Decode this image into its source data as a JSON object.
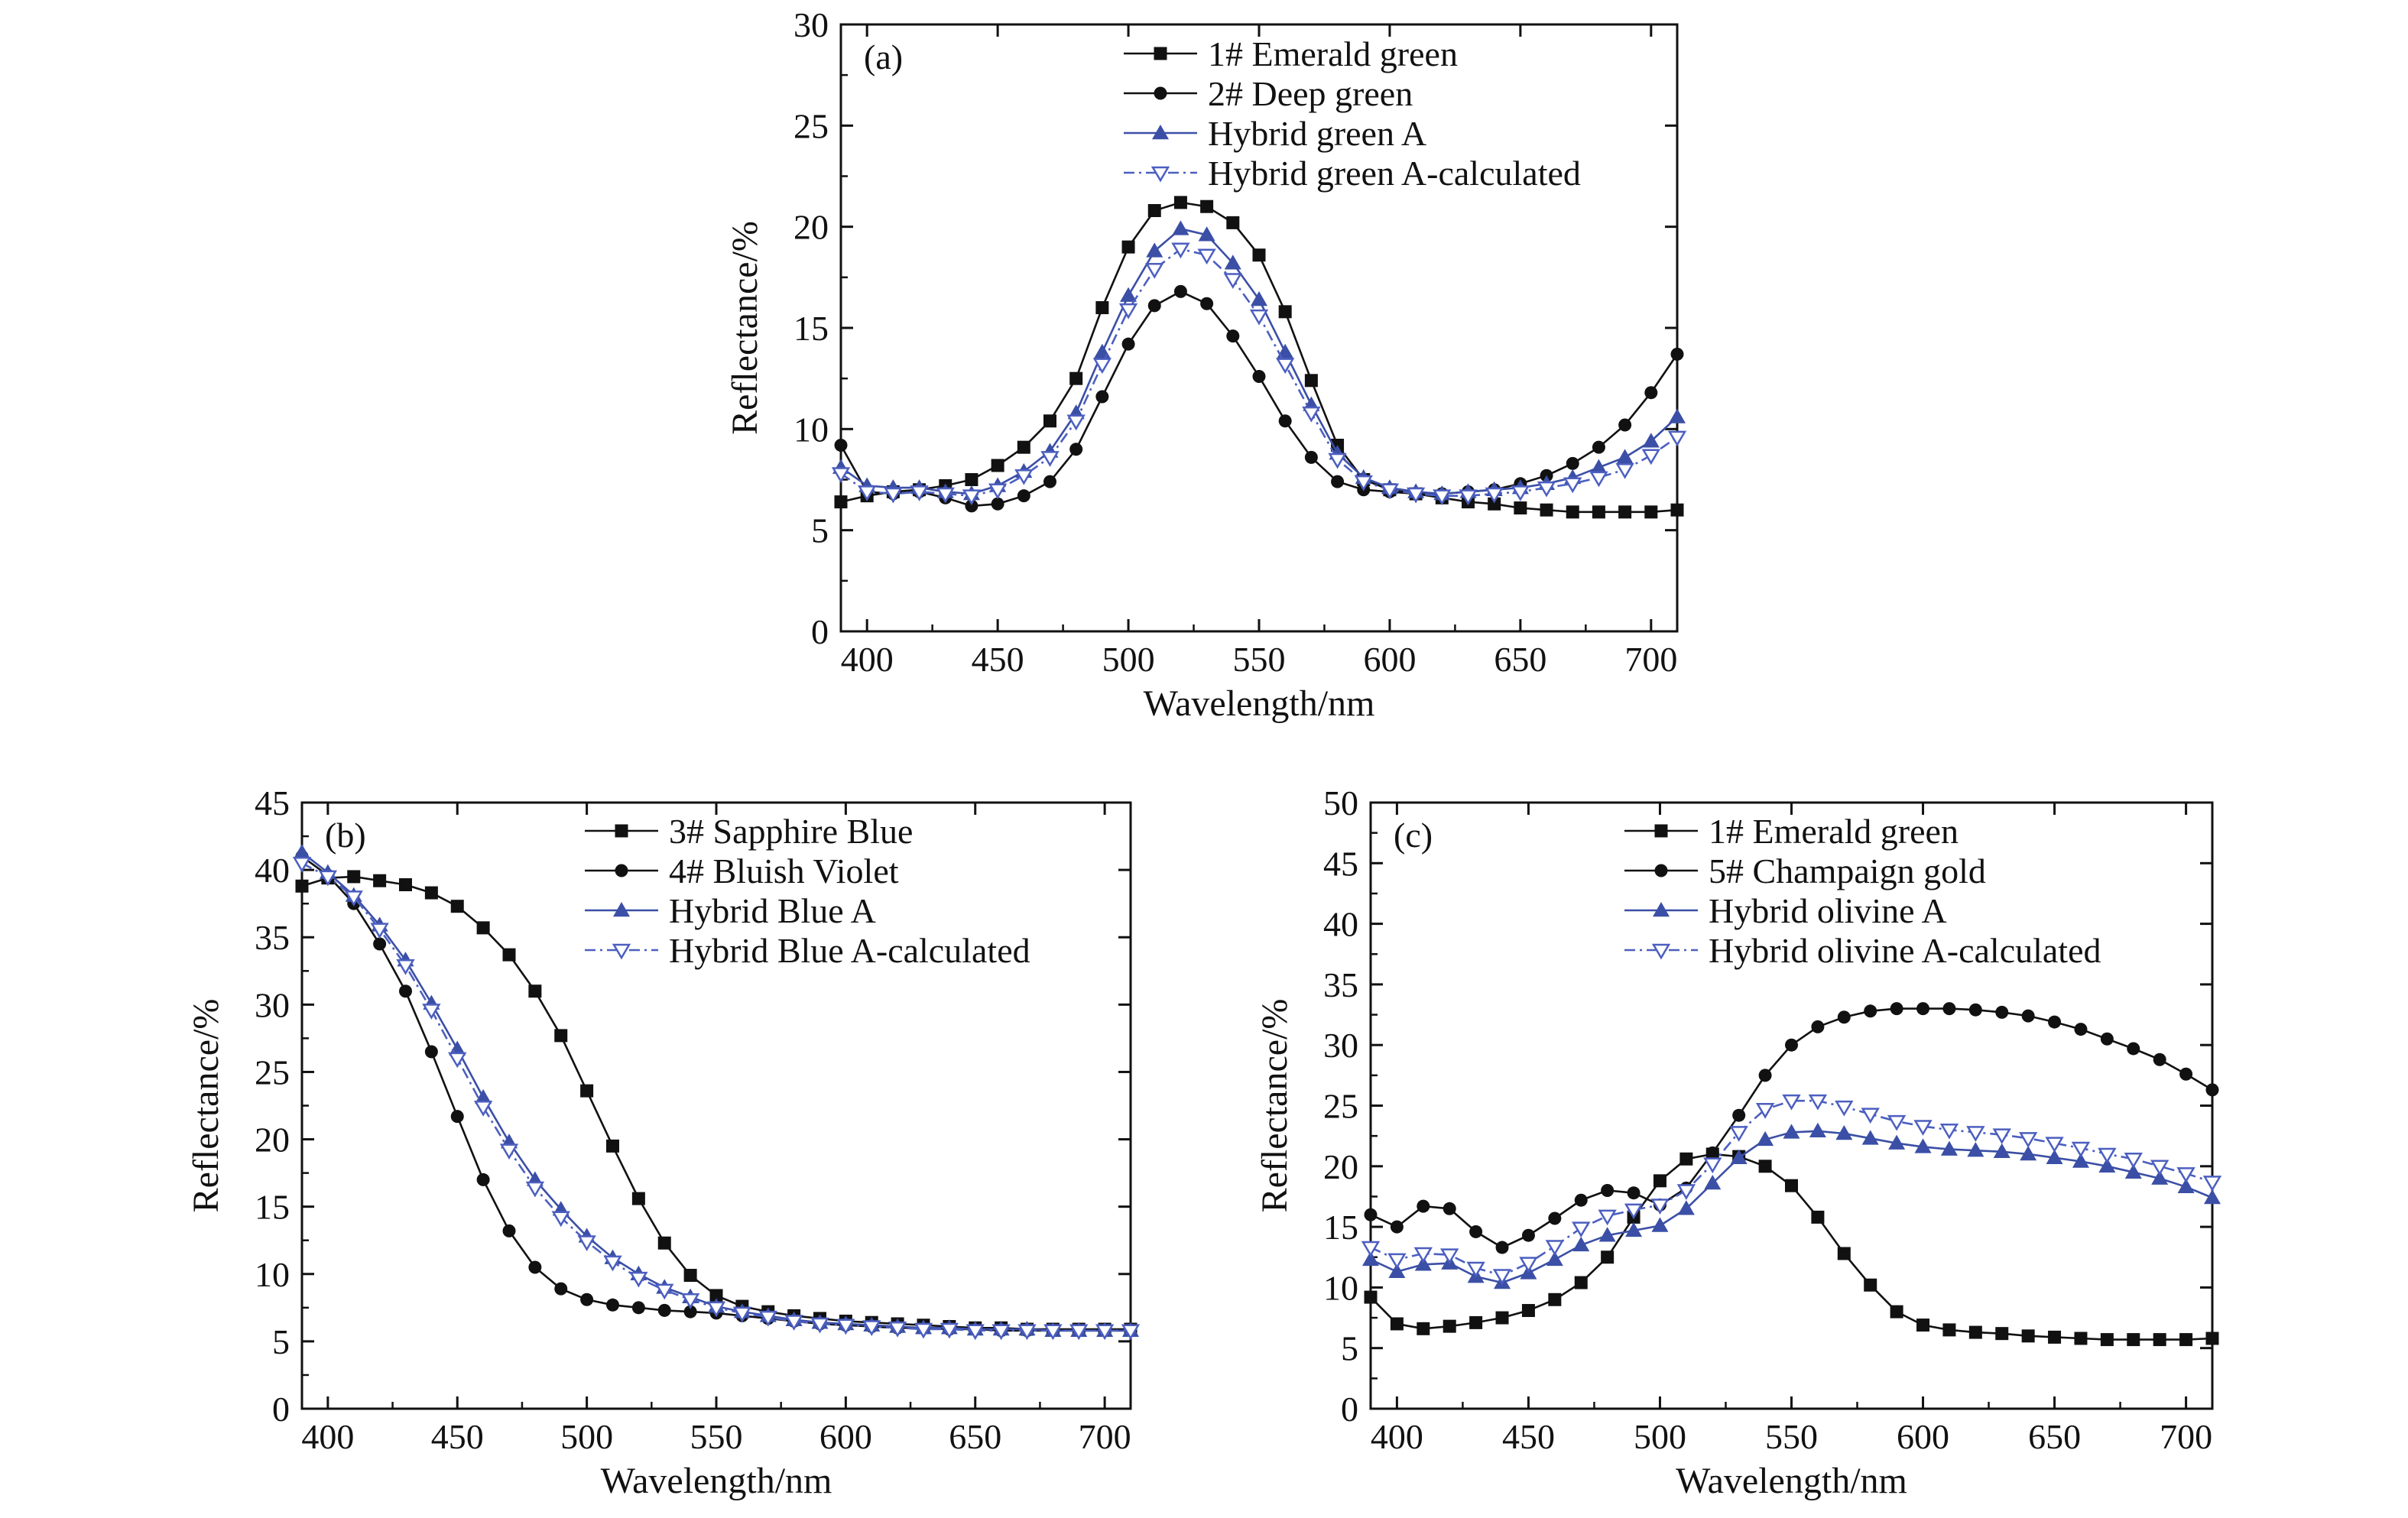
{
  "colors": {
    "black": "#111111",
    "blue": "#3b4fa6",
    "blue_light": "#4c5fc0"
  },
  "chart_data": [
    {
      "panel_label": "(a)",
      "type": "line",
      "xlabel": "Wavelength/nm",
      "ylabel": "Reflectance/%",
      "xlim": [
        390,
        710
      ],
      "ylim": [
        0,
        30
      ],
      "x_ticks": [
        400,
        450,
        500,
        550,
        600,
        650,
        700
      ],
      "y_ticks": [
        0,
        5,
        10,
        15,
        20,
        25,
        30
      ],
      "grid": false,
      "legend_position": "top-right",
      "x": [
        390,
        400,
        410,
        420,
        430,
        440,
        450,
        460,
        470,
        480,
        490,
        500,
        510,
        520,
        530,
        540,
        550,
        560,
        570,
        580,
        590,
        600,
        610,
        620,
        630,
        640,
        650,
        660,
        670,
        680,
        690,
        700,
        710
      ],
      "series": [
        {
          "name": "1# Emerald green",
          "marker": "square",
          "color": "#111111",
          "dash": "solid",
          "values": [
            6.4,
            6.7,
            6.9,
            7.0,
            7.2,
            7.5,
            8.2,
            9.1,
            10.4,
            12.5,
            16.0,
            19.0,
            20.8,
            21.2,
            21.0,
            20.2,
            18.6,
            15.8,
            12.4,
            9.2,
            7.5,
            7.0,
            6.8,
            6.6,
            6.4,
            6.3,
            6.1,
            6.0,
            5.9,
            5.9,
            5.9,
            5.9,
            6.0
          ]
        },
        {
          "name": "2# Deep green",
          "marker": "circle",
          "color": "#111111",
          "dash": "solid",
          "values": [
            9.2,
            6.9,
            6.8,
            6.9,
            6.6,
            6.2,
            6.3,
            6.7,
            7.4,
            9.0,
            11.6,
            14.2,
            16.1,
            16.8,
            16.2,
            14.6,
            12.6,
            10.4,
            8.6,
            7.4,
            7.0,
            6.9,
            6.8,
            6.8,
            6.9,
            7.0,
            7.3,
            7.7,
            8.3,
            9.1,
            10.2,
            11.8,
            13.7
          ]
        },
        {
          "name": "Hybrid green A",
          "marker": "triangle-up",
          "color": "#3b4fa6",
          "dash": "solid",
          "values": [
            8.1,
            7.2,
            7.1,
            7.1,
            6.9,
            6.8,
            7.2,
            7.9,
            8.9,
            10.8,
            13.8,
            16.6,
            18.8,
            19.9,
            19.6,
            18.2,
            16.4,
            13.8,
            11.2,
            8.8,
            7.6,
            7.1,
            6.9,
            6.8,
            6.9,
            7.0,
            7.1,
            7.3,
            7.6,
            8.1,
            8.6,
            9.4,
            10.6
          ]
        },
        {
          "name": "Hybrid green A-calculated",
          "marker": "triangle-down-open",
          "color": "#4c5fc0",
          "dash": "dashdot",
          "values": [
            7.8,
            6.9,
            6.8,
            6.9,
            6.8,
            6.7,
            7.0,
            7.7,
            8.6,
            10.4,
            13.2,
            15.9,
            17.9,
            18.9,
            18.6,
            17.4,
            15.6,
            13.2,
            10.8,
            8.5,
            7.4,
            7.0,
            6.8,
            6.7,
            6.7,
            6.8,
            6.9,
            7.1,
            7.3,
            7.6,
            8.0,
            8.7,
            9.6
          ]
        }
      ]
    },
    {
      "panel_label": "(b)",
      "type": "line",
      "xlabel": "Wavelength/nm",
      "ylabel": "Reflectance/%",
      "xlim": [
        390,
        710
      ],
      "ylim": [
        0,
        45
      ],
      "x_ticks": [
        400,
        450,
        500,
        550,
        600,
        650,
        700
      ],
      "y_ticks": [
        0,
        5,
        10,
        15,
        20,
        25,
        30,
        35,
        40,
        45
      ],
      "grid": false,
      "legend_position": "top-right",
      "x": [
        390,
        400,
        410,
        420,
        430,
        440,
        450,
        460,
        470,
        480,
        490,
        500,
        510,
        520,
        530,
        540,
        550,
        560,
        570,
        580,
        590,
        600,
        610,
        620,
        630,
        640,
        650,
        660,
        670,
        680,
        690,
        700,
        710
      ],
      "series": [
        {
          "name": "3# Sapphire Blue",
          "marker": "square",
          "color": "#111111",
          "dash": "solid",
          "values": [
            38.8,
            39.4,
            39.5,
            39.2,
            38.9,
            38.3,
            37.3,
            35.7,
            33.7,
            31.0,
            27.7,
            23.6,
            19.5,
            15.6,
            12.3,
            9.9,
            8.4,
            7.6,
            7.2,
            6.9,
            6.7,
            6.5,
            6.4,
            6.3,
            6.2,
            6.1,
            6.0,
            6.0,
            5.9,
            5.9,
            5.9,
            5.9,
            5.9
          ]
        },
        {
          "name": "4# Bluish Violet",
          "marker": "circle",
          "color": "#111111",
          "dash": "solid",
          "values": [
            41.0,
            39.6,
            37.5,
            34.5,
            31.0,
            26.5,
            21.7,
            17.0,
            13.2,
            10.5,
            8.9,
            8.1,
            7.7,
            7.5,
            7.3,
            7.2,
            7.1,
            6.9,
            6.7,
            6.5,
            6.3,
            6.2,
            6.1,
            6.0,
            6.0,
            5.9,
            5.9,
            5.8,
            5.8,
            5.8,
            5.8,
            5.8,
            5.8
          ]
        },
        {
          "name": "Hybrid Blue A",
          "marker": "triangle-up",
          "color": "#3b4fa6",
          "dash": "solid",
          "values": [
            41.3,
            39.8,
            38.1,
            35.9,
            33.3,
            30.1,
            26.7,
            23.1,
            19.8,
            17.0,
            14.8,
            12.8,
            11.2,
            10.0,
            9.0,
            8.3,
            7.6,
            7.2,
            6.9,
            6.6,
            6.4,
            6.3,
            6.2,
            6.1,
            6.0,
            6.0,
            5.9,
            5.9,
            5.9,
            5.8,
            5.8,
            5.8,
            5.8
          ]
        },
        {
          "name": "Hybrid Blue A-calculated",
          "marker": "triangle-down-open",
          "color": "#4c5fc0",
          "dash": "dashdot",
          "values": [
            40.5,
            39.5,
            38.0,
            35.6,
            32.9,
            29.6,
            26.0,
            22.4,
            19.2,
            16.4,
            14.2,
            12.4,
            10.9,
            9.7,
            8.8,
            8.1,
            7.5,
            7.1,
            6.8,
            6.5,
            6.3,
            6.2,
            6.1,
            6.0,
            5.9,
            5.9,
            5.8,
            5.8,
            5.8,
            5.8,
            5.8,
            5.8,
            5.8
          ]
        }
      ]
    },
    {
      "panel_label": "(c)",
      "type": "line",
      "xlabel": "Wavelength/nm",
      "ylabel": "Reflectance/%",
      "xlim": [
        390,
        710
      ],
      "ylim": [
        0,
        50
      ],
      "x_ticks": [
        400,
        450,
        500,
        550,
        600,
        650,
        700
      ],
      "y_ticks": [
        0,
        5,
        10,
        15,
        20,
        25,
        30,
        35,
        40,
        45,
        50
      ],
      "grid": false,
      "legend_position": "top-right",
      "x": [
        390,
        400,
        410,
        420,
        430,
        440,
        450,
        460,
        470,
        480,
        490,
        500,
        510,
        520,
        530,
        540,
        550,
        560,
        570,
        580,
        590,
        600,
        610,
        620,
        630,
        640,
        650,
        660,
        670,
        680,
        690,
        700,
        710
      ],
      "series": [
        {
          "name": "1# Emerald green",
          "marker": "square",
          "color": "#111111",
          "dash": "solid",
          "values": [
            9.2,
            7.0,
            6.6,
            6.8,
            7.1,
            7.5,
            8.1,
            9.0,
            10.4,
            12.5,
            15.8,
            18.8,
            20.6,
            21.0,
            20.8,
            20.0,
            18.4,
            15.8,
            12.8,
            10.2,
            8.0,
            6.9,
            6.5,
            6.3,
            6.2,
            6.0,
            5.9,
            5.8,
            5.7,
            5.7,
            5.7,
            5.7,
            5.8
          ]
        },
        {
          "name": "5# Champaign gold",
          "marker": "circle",
          "color": "#111111",
          "dash": "solid",
          "values": [
            16.0,
            15.0,
            16.7,
            16.5,
            14.6,
            13.3,
            14.3,
            15.7,
            17.2,
            18.0,
            17.8,
            16.8,
            18.2,
            21.1,
            24.2,
            27.5,
            30.0,
            31.5,
            32.3,
            32.8,
            33.0,
            33.0,
            33.0,
            32.9,
            32.7,
            32.4,
            31.9,
            31.3,
            30.5,
            29.7,
            28.8,
            27.6,
            26.3
          ]
        },
        {
          "name": "Hybrid olivine A",
          "marker": "triangle-up",
          "color": "#3b4fa6",
          "dash": "solid",
          "values": [
            12.3,
            11.3,
            11.9,
            12.0,
            10.9,
            10.4,
            11.2,
            12.3,
            13.5,
            14.3,
            14.7,
            15.1,
            16.5,
            18.6,
            20.7,
            22.2,
            22.8,
            22.9,
            22.7,
            22.3,
            21.9,
            21.6,
            21.4,
            21.3,
            21.2,
            21.0,
            20.7,
            20.4,
            20.0,
            19.5,
            19.0,
            18.3,
            17.4
          ]
        },
        {
          "name": "Hybrid olivine A-calculated",
          "marker": "triangle-down-open",
          "color": "#4c5fc0",
          "dash": "dashdot",
          "values": [
            13.3,
            12.3,
            12.8,
            12.7,
            11.6,
            11.0,
            12.0,
            13.4,
            14.9,
            15.9,
            16.4,
            16.8,
            18.0,
            20.2,
            22.8,
            24.7,
            25.4,
            25.4,
            24.9,
            24.3,
            23.7,
            23.3,
            23.0,
            22.8,
            22.6,
            22.3,
            21.9,
            21.5,
            21.0,
            20.6,
            20.0,
            19.4,
            18.7
          ]
        }
      ]
    }
  ]
}
